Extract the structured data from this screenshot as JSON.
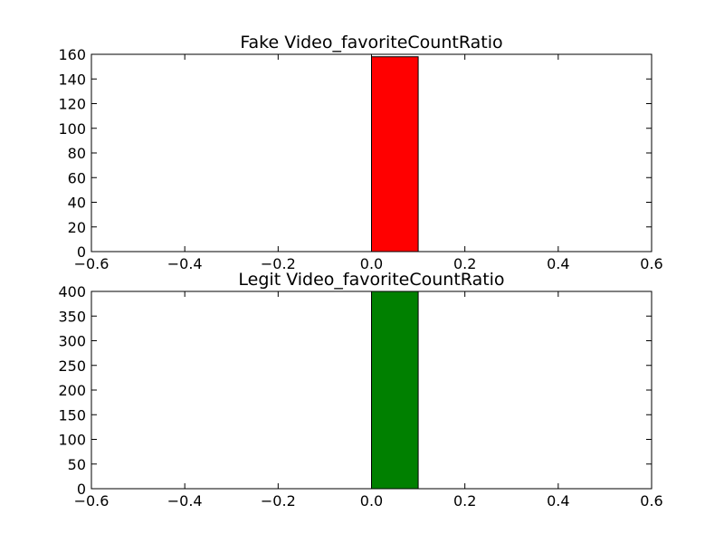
{
  "chart_data": [
    {
      "type": "bar",
      "title": "Fake Video_favoriteCountRatio",
      "xlabel": "",
      "ylabel": "",
      "xlim": [
        -0.6,
        0.6
      ],
      "ylim": [
        0,
        160
      ],
      "xticks": [
        -0.6,
        -0.4,
        -0.2,
        0.0,
        0.2,
        0.4,
        0.6
      ],
      "xtick_labels": [
        "−0.6",
        "−0.4",
        "−0.2",
        "0.0",
        "0.2",
        "0.4",
        "0.6"
      ],
      "yticks": [
        0,
        20,
        40,
        60,
        80,
        100,
        120,
        140,
        160
      ],
      "ytick_labels": [
        "0",
        "20",
        "40",
        "60",
        "80",
        "100",
        "120",
        "140",
        "160"
      ],
      "bins": [
        {
          "x0": -0.5,
          "x1": -0.4,
          "count": 0
        },
        {
          "x0": -0.4,
          "x1": -0.3,
          "count": 0
        },
        {
          "x0": -0.3,
          "x1": -0.2,
          "count": 0
        },
        {
          "x0": -0.2,
          "x1": -0.1,
          "count": 0
        },
        {
          "x0": -0.1,
          "x1": 0.0,
          "count": 0
        },
        {
          "x0": 0.0,
          "x1": 0.1,
          "count": 158
        },
        {
          "x0": 0.1,
          "x1": 0.2,
          "count": 0
        },
        {
          "x0": 0.2,
          "x1": 0.3,
          "count": 0
        },
        {
          "x0": 0.3,
          "x1": 0.4,
          "count": 0
        },
        {
          "x0": 0.4,
          "x1": 0.5,
          "count": 0
        }
      ],
      "color": "#ff0000",
      "grid": false
    },
    {
      "type": "bar",
      "title": "Legit Video_favoriteCountRatio",
      "xlabel": "",
      "ylabel": "",
      "xlim": [
        -0.6,
        0.6
      ],
      "ylim": [
        0,
        400
      ],
      "xticks": [
        -0.6,
        -0.4,
        -0.2,
        0.0,
        0.2,
        0.4,
        0.6
      ],
      "xtick_labels": [
        "−0.6",
        "−0.4",
        "−0.2",
        "0.0",
        "0.2",
        "0.4",
        "0.6"
      ],
      "yticks": [
        0,
        50,
        100,
        150,
        200,
        250,
        300,
        350,
        400
      ],
      "ytick_labels": [
        "0",
        "50",
        "100",
        "150",
        "200",
        "250",
        "300",
        "350",
        "400"
      ],
      "bins": [
        {
          "x0": -0.5,
          "x1": -0.4,
          "count": 0
        },
        {
          "x0": -0.4,
          "x1": -0.3,
          "count": 0
        },
        {
          "x0": -0.3,
          "x1": -0.2,
          "count": 0
        },
        {
          "x0": -0.2,
          "x1": -0.1,
          "count": 0
        },
        {
          "x0": -0.1,
          "x1": 0.0,
          "count": 0
        },
        {
          "x0": 0.0,
          "x1": 0.1,
          "count": 400
        },
        {
          "x0": 0.1,
          "x1": 0.2,
          "count": 0
        },
        {
          "x0": 0.2,
          "x1": 0.3,
          "count": 0
        },
        {
          "x0": 0.3,
          "x1": 0.4,
          "count": 0
        },
        {
          "x0": 0.4,
          "x1": 0.5,
          "count": 0
        }
      ],
      "color": "#008000",
      "grid": false
    }
  ]
}
